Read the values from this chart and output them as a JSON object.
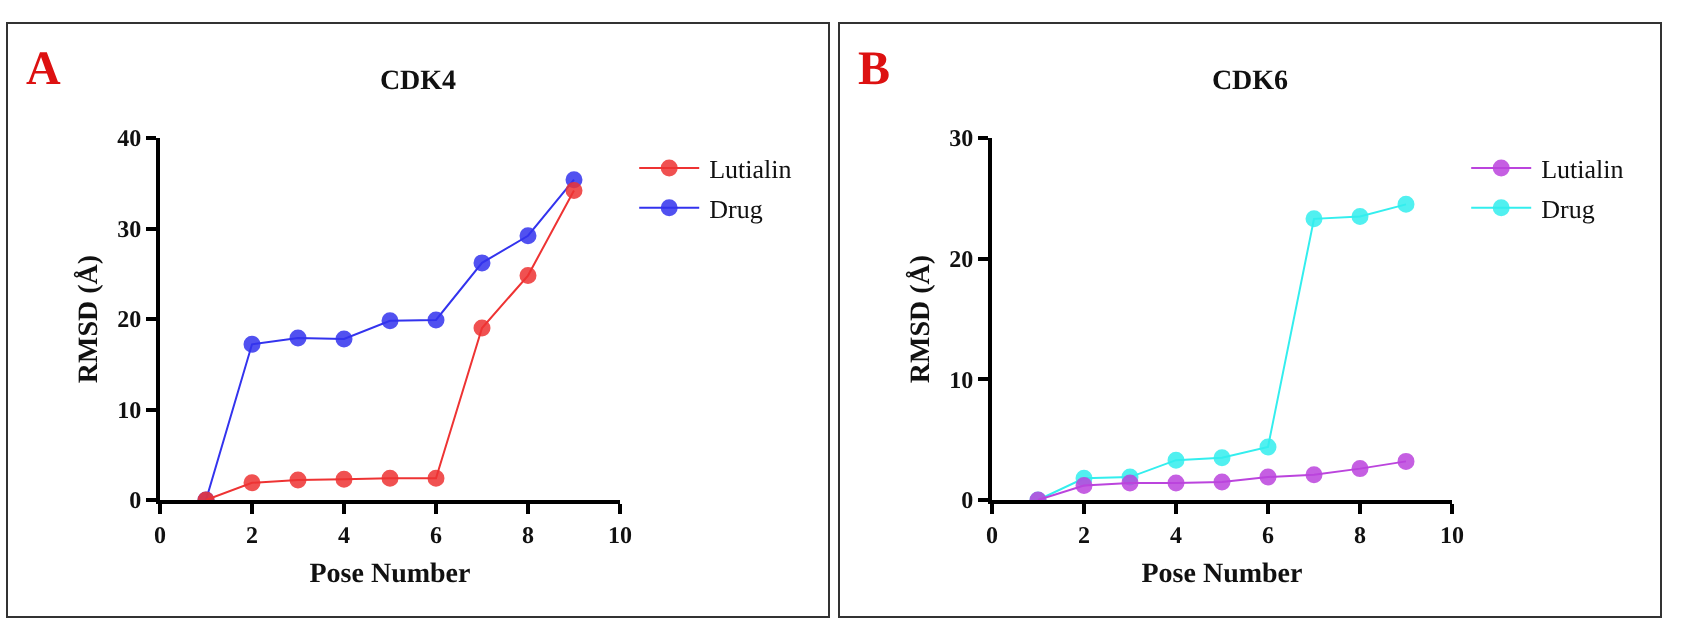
{
  "chart_data": [
    {
      "type": "line",
      "title": "CDK4",
      "annotations": [
        "A"
      ],
      "xlabel": "Pose Number",
      "ylabel": "RMSD (Å)",
      "x": [
        1,
        2,
        3,
        4,
        5,
        6,
        7,
        8,
        9
      ],
      "xlim": [
        0,
        10
      ],
      "xticks": [
        0,
        2,
        4,
        6,
        8,
        10
      ],
      "ylim": [
        0,
        40
      ],
      "yticks": [
        0,
        10,
        20,
        30,
        40
      ],
      "grid": false,
      "legend": "top right",
      "marker": "circle",
      "line_style": "solid",
      "series": [
        {
          "name": "Lutialin",
          "color": "#ee3333",
          "values": [
            0,
            1.9,
            2.2,
            2.3,
            2.4,
            2.4,
            19,
            24.8,
            34.2
          ]
        },
        {
          "name": "Drug",
          "color": "#3333ee",
          "values": [
            0,
            17.2,
            17.9,
            17.8,
            19.8,
            19.9,
            26.2,
            29.2,
            35.4
          ]
        }
      ]
    },
    {
      "type": "line",
      "title": "CDK6",
      "annotations": [
        "B"
      ],
      "xlabel": "Pose Number",
      "ylabel": "RMSD (Å)",
      "x": [
        1,
        2,
        3,
        4,
        5,
        6,
        7,
        8,
        9
      ],
      "xlim": [
        0,
        10
      ],
      "xticks": [
        0,
        2,
        4,
        6,
        8,
        10
      ],
      "ylim": [
        0,
        30
      ],
      "yticks": [
        0,
        10,
        20,
        30
      ],
      "grid": false,
      "legend": "top right",
      "marker": "circle",
      "line_style": "solid",
      "series": [
        {
          "name": "Lutialin",
          "color": "#bb44dd",
          "values": [
            0,
            1.2,
            1.4,
            1.4,
            1.5,
            1.9,
            2.1,
            2.6,
            3.2
          ]
        },
        {
          "name": "Drug",
          "color": "#33eeee",
          "values": [
            0,
            1.8,
            1.9,
            3.3,
            3.5,
            4.4,
            23.3,
            23.5,
            24.5
          ]
        }
      ]
    }
  ]
}
